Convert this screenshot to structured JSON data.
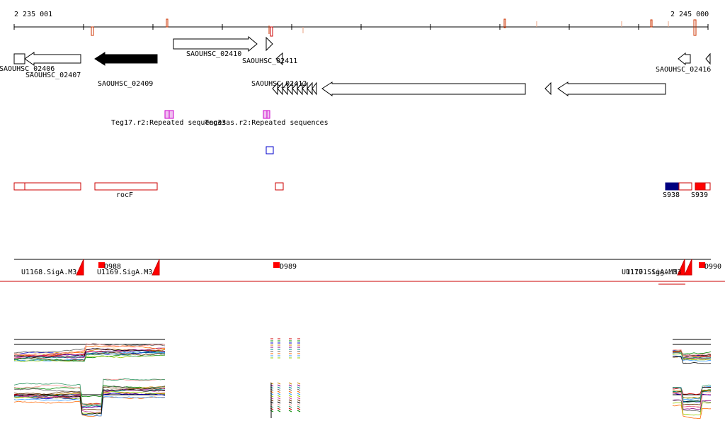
{
  "ruler": {
    "start_label": "2 235 001",
    "end_label": "2 245 000",
    "start_coord": 2235001,
    "end_coord": 2245000
  },
  "gene_labels": {
    "g02406": "SAOUHSC_02406",
    "g02407": "SAOUHSC_02407",
    "g02409": "SAOUHSC_02409",
    "g02410": "SAOUHSC_02410",
    "g02411": "SAOUHSC_02411",
    "g02412": "SAOUHSC_02412",
    "g02416": "SAOUHSC_02416"
  },
  "repeat_labels": {
    "teg17": "Teg17.r2:Repeated sequences",
    "teg33": "Teg33as.r2:Repeated sequences"
  },
  "feature_labels": {
    "rocF": "rocF",
    "s938": "S938",
    "s939": "S939"
  },
  "promoter_labels": {
    "u1168": "U1168.SigA.M3",
    "u1169": "U1169.SigA.M3",
    "u1170": "U1170.SigA.M3",
    "u1171": "U1171.SigA.M3",
    "d988": "D988",
    "d989": "D989",
    "d990": "D990"
  },
  "colors": {
    "gene_stroke": "#000000",
    "gene_fill_highlight": "#000000",
    "feature_outline": "#cc0000",
    "feature_fill": "#ff0000",
    "repeat": "#cc00cc",
    "blue_marker": "#0000cc",
    "navy_fill": "#000080",
    "tick_orange": "#cc3300"
  }
}
